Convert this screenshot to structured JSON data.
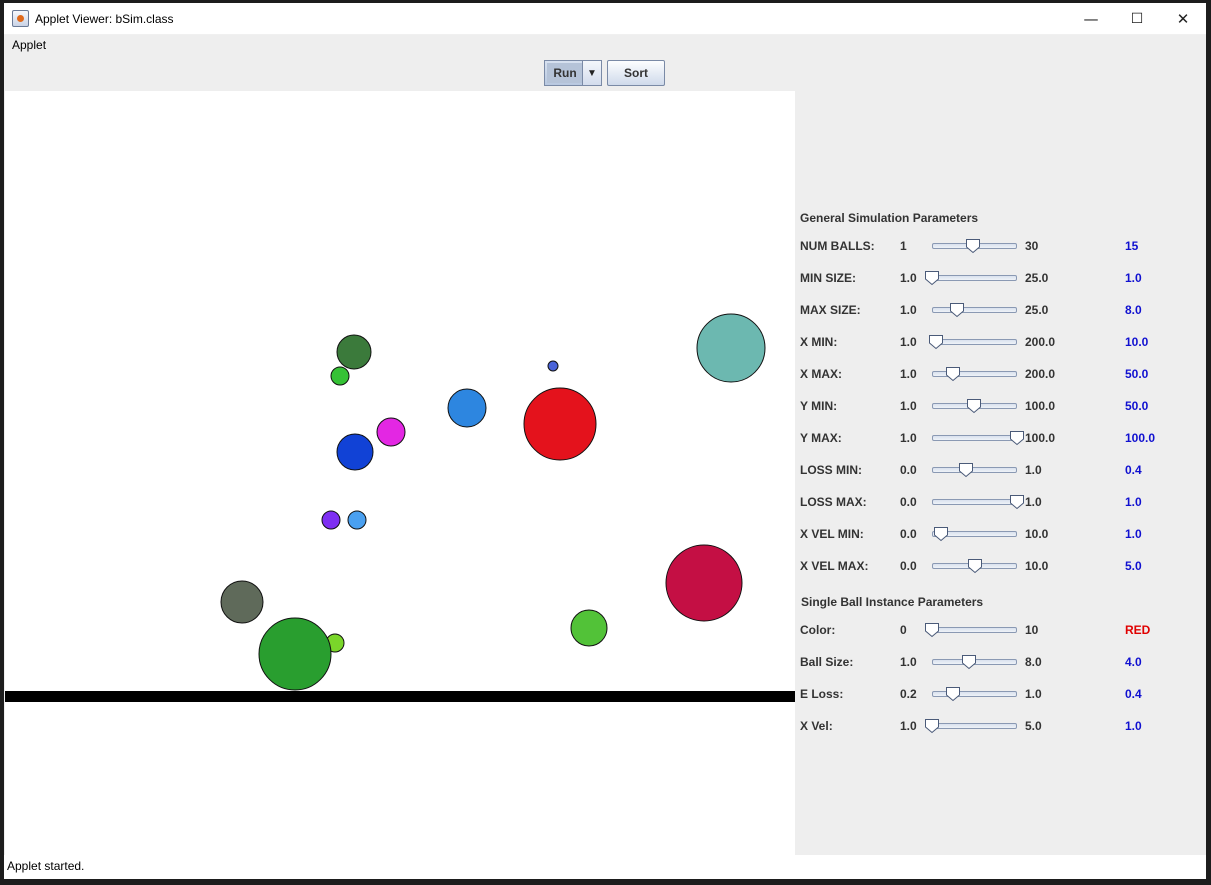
{
  "window": {
    "title": "Applet Viewer: bSim.class",
    "controls": {
      "minimize": "—",
      "maximize": "☐",
      "close": "✕"
    }
  },
  "menu": {
    "applet": "Applet"
  },
  "toolbar": {
    "run_label": "Run",
    "sort_label": "Sort"
  },
  "status": {
    "text": "Applet started."
  },
  "balls": [
    {
      "color": "#3b7a3b"
    },
    {
      "color": "#35c235"
    },
    {
      "color": "#4a63d8"
    },
    {
      "color": "#6cb8b0"
    },
    {
      "color": "#2d86e0"
    },
    {
      "color": "#e4121c"
    },
    {
      "color": "#e327e3"
    },
    {
      "color": "#1142d6"
    },
    {
      "color": "#7e2ff2"
    },
    {
      "color": "#4aa0f0"
    },
    {
      "color": "#c40f44"
    },
    {
      "color": "#5f6a5a"
    },
    {
      "color": "#52c238"
    },
    {
      "color": "#7ad62a"
    },
    {
      "color": "#299e2f"
    }
  ],
  "general": {
    "title": "General Simulation Parameters",
    "rows": [
      {
        "label": "NUM BALLS:",
        "min": "1",
        "max": "30",
        "value": "15",
        "fraction": 0.48
      },
      {
        "label": "MIN SIZE:",
        "min": "1.0",
        "max": "25.0",
        "value": "1.0",
        "fraction": 0.0
      },
      {
        "label": "MAX SIZE:",
        "min": "1.0",
        "max": "25.0",
        "value": "8.0",
        "fraction": 0.29
      },
      {
        "label": "X MIN:",
        "min": "1.0",
        "max": "200.0",
        "value": "10.0",
        "fraction": 0.045
      },
      {
        "label": "X MAX:",
        "min": "1.0",
        "max": "200.0",
        "value": "50.0",
        "fraction": 0.246
      },
      {
        "label": "Y MIN:",
        "min": "1.0",
        "max": "100.0",
        "value": "50.0",
        "fraction": 0.495
      },
      {
        "label": "Y MAX:",
        "min": "1.0",
        "max": "100.0",
        "value": "100.0",
        "fraction": 1.0
      },
      {
        "label": "LOSS MIN:",
        "min": "0.0",
        "max": "1.0",
        "value": "0.4",
        "fraction": 0.4
      },
      {
        "label": "LOSS MAX:",
        "min": "0.0",
        "max": "1.0",
        "value": "1.0",
        "fraction": 1.0
      },
      {
        "label": "X VEL MIN:",
        "min": "0.0",
        "max": "10.0",
        "value": "1.0",
        "fraction": 0.1
      },
      {
        "label": "X VEL MAX:",
        "min": "0.0",
        "max": "10.0",
        "value": "5.0",
        "fraction": 0.5
      }
    ]
  },
  "single": {
    "title": "Single Ball Instance Parameters",
    "rows": [
      {
        "label": "Color:",
        "min": "0",
        "max": "10",
        "value": "RED",
        "fraction": 0.0,
        "value_color": "#e00000"
      },
      {
        "label": "Ball Size:",
        "min": "1.0",
        "max": "8.0",
        "value": "4.0",
        "fraction": 0.43
      },
      {
        "label": "E Loss:",
        "min": "0.2",
        "max": "1.0",
        "value": "0.4",
        "fraction": 0.25
      },
      {
        "label": "X Vel:",
        "min": "1.0",
        "max": "5.0",
        "value": "1.0",
        "fraction": 0.0
      }
    ]
  }
}
